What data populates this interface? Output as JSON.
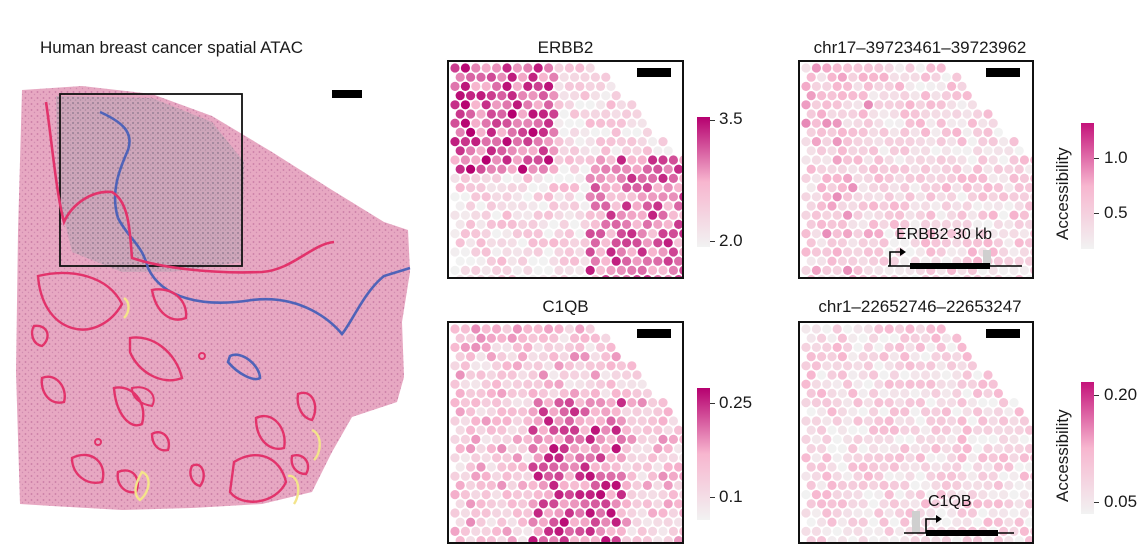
{
  "left_panel": {
    "title": "Human breast cancer spatial ATAC"
  },
  "panels": [
    {
      "id": "erbb2",
      "title": "ERBB2",
      "colorbar": {
        "max_label": "3.5",
        "min_label": "2.0"
      }
    },
    {
      "id": "chr17",
      "title": "chr17–39723461–39723962",
      "track_label": "ERBB2 30 kb",
      "colorbar": {
        "max_label": "1.0",
        "min_label": "0.5",
        "axis_label": "Accessibility"
      }
    },
    {
      "id": "c1qb",
      "title": "C1QB",
      "colorbar": {
        "max_label": "0.25",
        "min_label": "0.1"
      }
    },
    {
      "id": "chr1",
      "title": "chr1–22652746–22653247",
      "track_label": "C1QB",
      "colorbar": {
        "max_label": "0.20",
        "min_label": "0.05",
        "axis_label": "Accessibility"
      }
    }
  ],
  "colors": {
    "colormap_low": "#f2f2f2",
    "colormap_mid": "#f7b6cf",
    "colormap_high": "#b5006f",
    "tissue": "#e8a9c4",
    "outline_tumor": "#e2336b",
    "outline_blue": "#4f63b8",
    "outline_yellow": "#f3e48a"
  }
}
